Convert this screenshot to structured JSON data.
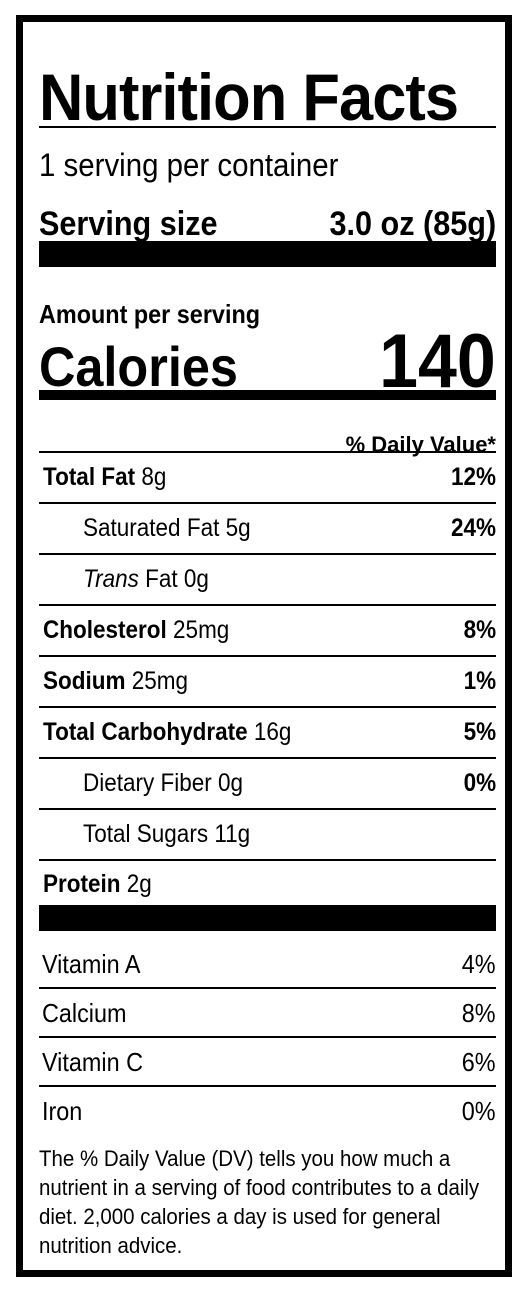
{
  "title": "Nutrition Facts",
  "servings_per_container": "1 serving per container",
  "serving_size": {
    "label": "Serving size",
    "value": "3.0 oz (85g)"
  },
  "amount_per_serving": "Amount per serving",
  "calories": {
    "label": "Calories",
    "value": "140"
  },
  "daily_value_header": "% Daily Value*",
  "nutrients": [
    {
      "name": "Total Fat",
      "amount": "8g",
      "dv": "12%"
    },
    {
      "name": "Saturated Fat",
      "amount": "5g",
      "dv": "24%"
    },
    {
      "name_italic": "Trans",
      "name": "Fat",
      "amount": "0g",
      "dv": ""
    },
    {
      "name": "Cholesterol",
      "amount": "25mg",
      "dv": "8%"
    },
    {
      "name": "Sodium",
      "amount": "25mg",
      "dv": "1%"
    },
    {
      "name": "Total Carbohydrate",
      "amount": "16g",
      "dv": "5%"
    },
    {
      "name": "Dietary Fiber",
      "amount": "0g",
      "dv": "0%"
    },
    {
      "name": "Total Sugars",
      "amount": "11g",
      "dv": ""
    },
    {
      "name": "Protein",
      "amount": "2g",
      "dv": ""
    }
  ],
  "vitamins": [
    {
      "name": "Vitamin A",
      "dv": "4%"
    },
    {
      "name": "Calcium",
      "dv": "8%"
    },
    {
      "name": "Vitamin C",
      "dv": "6%"
    },
    {
      "name": "Iron",
      "dv": "0%"
    }
  ],
  "footnote": "The % Daily Value (DV) tells you how much a nutrient in a serving of food contributes to a daily diet. 2,000 calories a day is used for general nutrition advice."
}
